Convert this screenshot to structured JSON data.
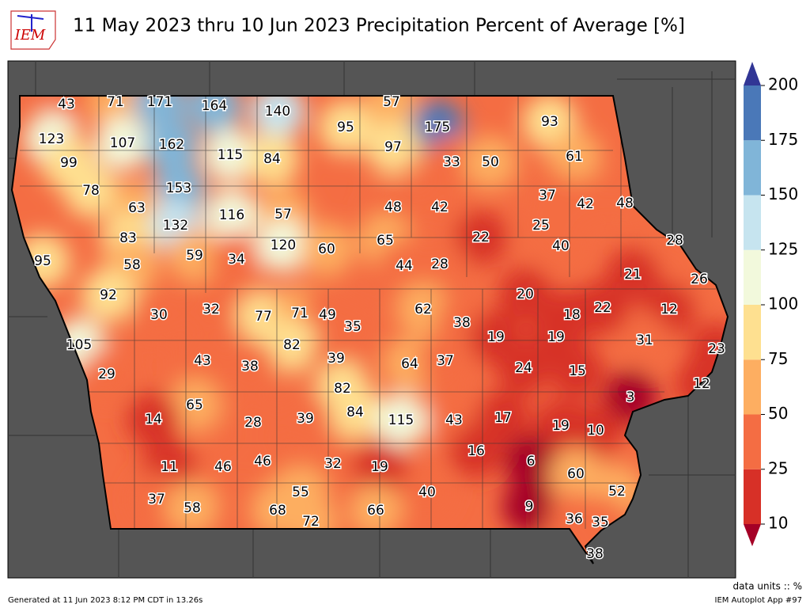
{
  "header": {
    "logo": "IEM",
    "title": "11 May 2023 thru 10 Jun 2023 Precipitation Percent of Average [%]"
  },
  "colorbar": {
    "ticks": [
      10,
      25,
      50,
      75,
      100,
      125,
      150,
      175,
      200
    ],
    "colors": [
      "#d73027",
      "#f46d43",
      "#fdae61",
      "#fee090",
      "#f2f9dc",
      "#c6e4ef",
      "#80b5d8",
      "#4a78b8"
    ],
    "under_color": "#a50026",
    "over_color": "#313695"
  },
  "stations": [
    43,
    71,
    171,
    164,
    140,
    57,
    95,
    175,
    93,
    123,
    107,
    162,
    115,
    84,
    97,
    33,
    50,
    61,
    99,
    78,
    153,
    37,
    42,
    48,
    63,
    116,
    57,
    48,
    42,
    132,
    25,
    83,
    22,
    28,
    95,
    58,
    59,
    34,
    120,
    60,
    65,
    40,
    44,
    28,
    21,
    26,
    20,
    92,
    62,
    18,
    22,
    12,
    30,
    32,
    77,
    71,
    49,
    35,
    38,
    19,
    19,
    31,
    23,
    105,
    82,
    39,
    43,
    38,
    64,
    37,
    24,
    15,
    29,
    12,
    82,
    3,
    65,
    84,
    14,
    28,
    39,
    115,
    43,
    17,
    19,
    10,
    16,
    6,
    11,
    46,
    46,
    32,
    19,
    60,
    52,
    37,
    55,
    40,
    58,
    68,
    66,
    9,
    36,
    35,
    72,
    38
  ],
  "footer": {
    "units": "data units :: %",
    "generated": "Generated at 11 Jun 2023 8:12 PM CDT in 13.26s",
    "app": "IEM Autoplot App #97"
  }
}
